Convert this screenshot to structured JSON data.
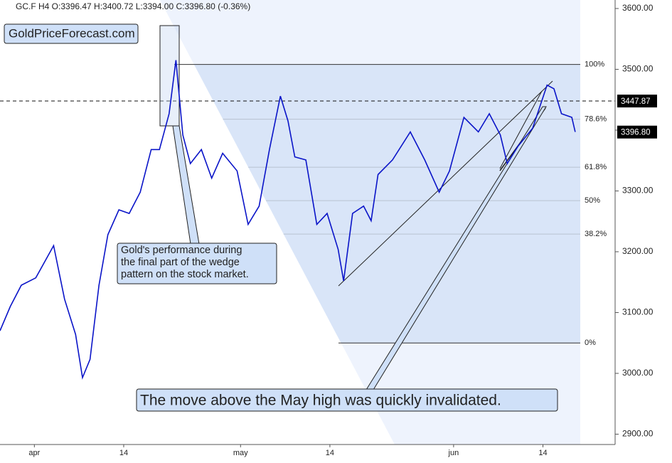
{
  "chart_data": {
    "type": "line",
    "title": "GC.F  H4  O:3396.47 H:3400.72 L:3394.00 C:3396.80  (-0.36%)",
    "watermark": "GoldPriceForecast.com",
    "annotations": [
      "Gold's performance during\nthe final part of the wedge\npattern on the stock market.",
      "The move above the May high was quickly invalidated."
    ],
    "x": [
      -5,
      -3.5,
      -1.9,
      0.2,
      2.8,
      4.4,
      6,
      7,
      8.1,
      9.4,
      10.7,
      12.3,
      13.8,
      15.4,
      17,
      18.2,
      19.6,
      20.6,
      21.6,
      22.7,
      24.3,
      25.8,
      27.4,
      29.5,
      31.1,
      32.7,
      34.2,
      35.8,
      36.9,
      37.9,
      39.5,
      41.1,
      42.6,
      44.2,
      45,
      46.3,
      47.9,
      49,
      50,
      52.1,
      54.7,
      56.8,
      58.9,
      60.4,
      62.5,
      64.6,
      66.2,
      67.8,
      68.8,
      70.4,
      72.5,
      74.6,
      75.6,
      76.7,
      78.2,
      78.7
    ],
    "series": [
      {
        "name": "GC.F",
        "color": "#0a14c8",
        "values": [
          3070,
          3110,
          3145,
          3157,
          3210,
          3122,
          3064,
          2993,
          3023,
          3145,
          3228,
          3269,
          3263,
          3298,
          3368,
          3368,
          3427,
          3515,
          3392,
          3345,
          3368,
          3321,
          3362,
          3333,
          3245,
          3275,
          3368,
          3456,
          3415,
          3356,
          3351,
          3245,
          3263,
          3204,
          3152,
          3263,
          3275,
          3251,
          3327,
          3351,
          3397,
          3351,
          3298,
          3333,
          3421,
          3397,
          3427,
          3392,
          3345,
          3374,
          3403,
          3474,
          3468,
          3427,
          3421,
          3397
        ]
      }
    ],
    "xlim": [
      -5,
      84.5
    ],
    "xticks": [
      {
        "value": 0,
        "label": "apr"
      },
      {
        "value": 13,
        "label": "14"
      },
      {
        "value": 30,
        "label": "may"
      },
      {
        "value": 43,
        "label": "14"
      },
      {
        "value": 61,
        "label": "jun"
      },
      {
        "value": 74,
        "label": "14"
      }
    ],
    "ylim": [
      2883,
      3614
    ],
    "yticks": [
      {
        "value": 2900,
        "label": "2900.00"
      },
      {
        "value": 3000,
        "label": "3000.00"
      },
      {
        "value": 3100,
        "label": "3100.00"
      },
      {
        "value": 3200,
        "label": "3200.00"
      },
      {
        "value": 3300,
        "label": "3300.00"
      },
      {
        "value": 3400,
        "label": "3400.00"
      },
      {
        "value": 3500,
        "label": "3500.00"
      },
      {
        "value": 3600,
        "label": "3600.00"
      }
    ],
    "fib_levels": [
      {
        "value": 3508,
        "label": "100%"
      },
      {
        "value": 3418,
        "label": "78.6%"
      },
      {
        "value": 3339,
        "label": "61.8%"
      },
      {
        "value": 3284,
        "label": "50%"
      },
      {
        "value": 3229,
        "label": "38.2%"
      },
      {
        "value": 3050,
        "label": "0%"
      }
    ],
    "price_lines": [
      {
        "value": 3447.87,
        "label": "3447.87"
      },
      {
        "value": 3396.8,
        "label": "3396.80"
      }
    ]
  }
}
